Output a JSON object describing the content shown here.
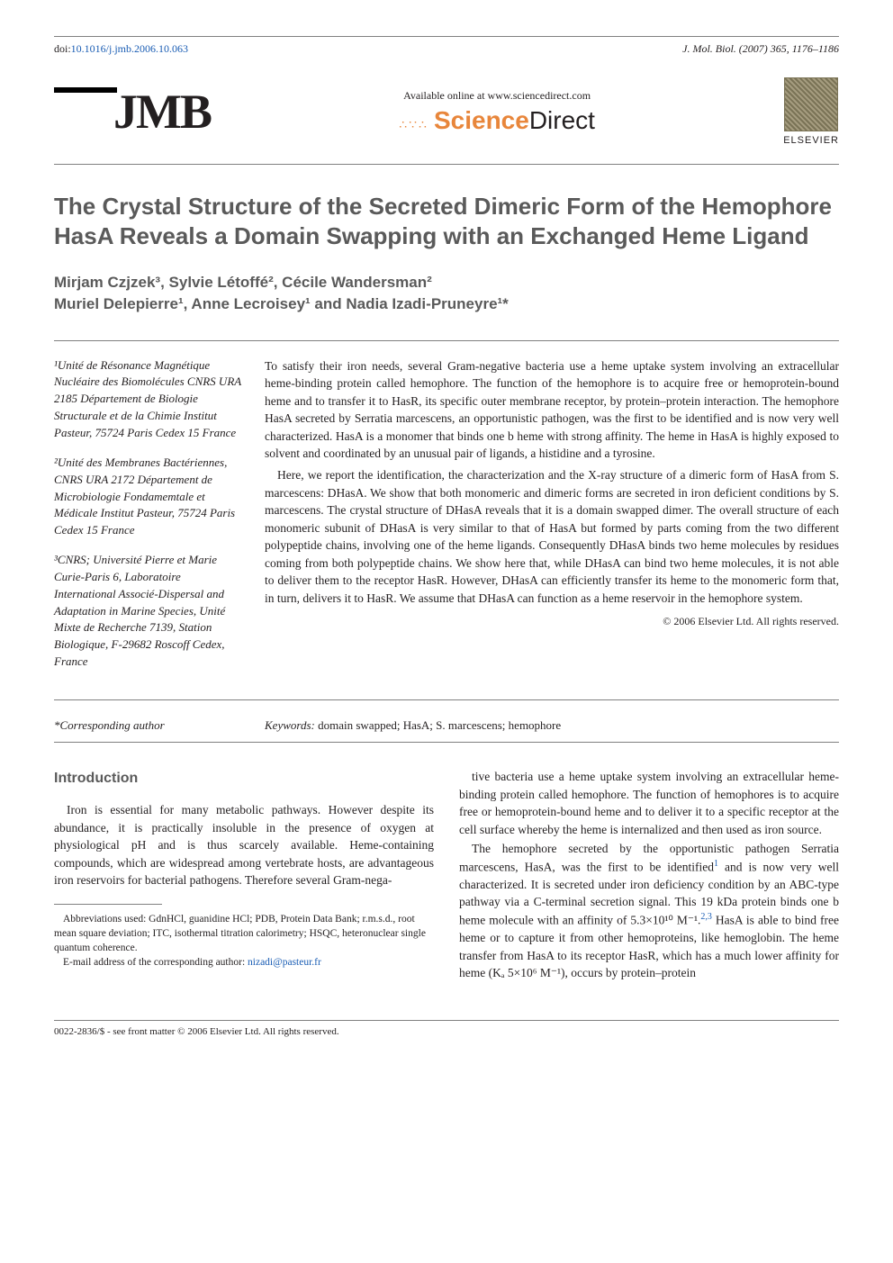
{
  "header": {
    "doi_label": "doi:",
    "doi_value": "10.1016/j.jmb.2006.10.063",
    "journal_ref": "J. Mol. Biol. (2007) 365, 1176–1186"
  },
  "brand": {
    "jmb": "JMB",
    "sd_available": "Available online at www.sciencedirect.com",
    "sd_name_1": "Science",
    "sd_name_2": "Direct",
    "elsevier": "ELSEVIER"
  },
  "title": "The Crystal Structure of the Secreted Dimeric Form of the Hemophore HasA Reveals a Domain Swapping with an Exchanged Heme Ligand",
  "authors_line1": "Mirjam Czjzek³, Sylvie Létoffé², Cécile Wandersman²",
  "authors_line2": "Muriel Delepierre¹, Anne Lecroisey¹ and Nadia Izadi-Pruneyre¹*",
  "affiliations": {
    "a1": "¹Unité de Résonance Magnétique Nucléaire des Biomolécules CNRS URA 2185 Département de Biologie Structurale et de la Chimie Institut Pasteur, 75724 Paris Cedex 15 France",
    "a2": "²Unité des Membranes Bactériennes, CNRS URA 2172 Département de Microbiologie Fondamemtale et Médicale Institut Pasteur, 75724 Paris Cedex 15 France",
    "a3": "³CNRS; Université Pierre et Marie Curie-Paris 6, Laboratoire International Associé-Dispersal and Adaptation in Marine Species, Unité Mixte de Recherche 7139, Station Biologique, F-29682 Roscoff Cedex, France"
  },
  "abstract": {
    "p1": "To satisfy their iron needs, several Gram-negative bacteria use a heme uptake system involving an extracellular heme-binding protein called hemophore. The function of the hemophore is to acquire free or hemoprotein-bound heme and to transfer it to HasR, its specific outer membrane receptor, by protein–protein interaction. The hemophore HasA secreted by Serratia marcescens, an opportunistic pathogen, was the first to be identified and is now very well characterized. HasA is a monomer that binds one b heme with strong affinity. The heme in HasA is highly exposed to solvent and coordinated by an unusual pair of ligands, a histidine and a tyrosine.",
    "p2": "Here, we report the identification, the characterization and the X-ray structure of a dimeric form of HasA from S. marcescens: DHasA. We show that both monomeric and dimeric forms are secreted in iron deficient conditions by S. marcescens. The crystal structure of DHasA reveals that it is a domain swapped dimer. The overall structure of each monomeric subunit of DHasA is very similar to that of HasA but formed by parts coming from the two different polypeptide chains, involving one of the heme ligands. Consequently DHasA binds two heme molecules by residues coming from both polypeptide chains. We show here that, while DHasA can bind two heme molecules, it is not able to deliver them to the receptor HasR. However, DHasA can efficiently transfer its heme to the monomeric form that, in turn, delivers it to HasR. We assume that DHasA can function as a heme reservoir in the hemophore system.",
    "copyright": "© 2006 Elsevier Ltd. All rights reserved."
  },
  "keywords": {
    "corresponding": "*Corresponding author",
    "label": "Keywords:",
    "text": "domain swapped; HasA; S. marcescens; hemophore"
  },
  "body": {
    "intro_heading": "Introduction",
    "col1_p1": "Iron is essential for many metabolic pathways. However despite its abundance, it is practically insoluble in the presence of oxygen at physiological pH and is thus scarcely available. Heme-containing compounds, which are widespread among vertebrate hosts, are advantageous iron reservoirs for bacterial pathogens. Therefore several Gram-nega-",
    "col1_abbrev": "Abbreviations used: GdnHCl, guanidine HCl; PDB, Protein Data Bank; r.m.s.d., root mean square deviation; ITC, isothermal titration calorimetry; HSQC, heteronuclear single quantum coherence.",
    "col1_email_label": "E-mail address of the corresponding author:",
    "col1_email": "nizadi@pasteur.fr",
    "col2_p1": "tive bacteria use a heme uptake system involving an extracellular heme-binding protein called hemophore. The function of hemophores is to acquire free or hemoprotein-bound heme and to deliver it to a specific receptor at the cell surface whereby the heme is internalized and then used as iron source.",
    "col2_p2a": "The hemophore secreted by the opportunistic pathogen Serratia marcescens, HasA, was the first to be identified",
    "col2_ref1": "1",
    "col2_p2b": " and is now very well characterized. It is secreted under iron deficiency condition by an ABC-type pathway via a C-terminal secretion signal. This 19 kDa protein binds one b heme molecule with an affinity of 5.3×10¹⁰ M⁻¹.",
    "col2_ref2": "2,3",
    "col2_p2c": " HasA is able to bind free heme or to capture it from other hemoproteins, like hemoglobin. The heme transfer from HasA to its receptor HasR, which has a much lower affinity for heme (Kₐ 5×10⁶ M⁻¹), occurs by protein–protein"
  },
  "footer": "0022-2836/$ - see front matter © 2006 Elsevier Ltd. All rights reserved."
}
